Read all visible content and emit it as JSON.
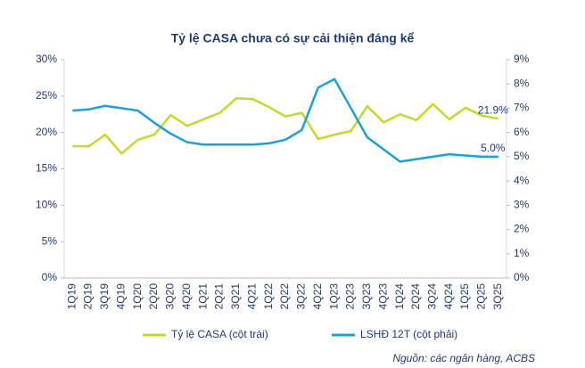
{
  "chart_data": {
    "type": "line",
    "title": "Tỷ lệ CASA chưa có sự cải thiện đáng kể",
    "categories": [
      "1Q19",
      "2Q19",
      "3Q19",
      "4Q19",
      "1Q20",
      "2Q20",
      "3Q20",
      "4Q20",
      "1Q21",
      "2Q21",
      "3Q21",
      "4Q21",
      "1Q22",
      "2Q22",
      "3Q22",
      "4Q22",
      "1Q23",
      "2Q23",
      "3Q23",
      "4Q23",
      "1Q24",
      "2Q24",
      "3Q24",
      "4Q24",
      "1Q25",
      "2Q25",
      "3Q25"
    ],
    "series": [
      {
        "name": "Tỷ lệ CASA (cột trái)",
        "color": "#c8d72b",
        "values": [
          18.1,
          18.1,
          19.7,
          17.1,
          19.0,
          19.7,
          22.4,
          20.9,
          21.8,
          22.7,
          24.7,
          24.6,
          23.5,
          22.2,
          22.7,
          19.1,
          19.7,
          20.2,
          23.6,
          21.4,
          22.5,
          21.7,
          23.9,
          21.8,
          23.4,
          22.3,
          21.9
        ],
        "value_labels": [
          null,
          null,
          null,
          null,
          null,
          null,
          null,
          null,
          null,
          null,
          null,
          null,
          null,
          null,
          null,
          null,
          null,
          null,
          null,
          null,
          null,
          null,
          null,
          null,
          null,
          null,
          "21.9%"
        ]
      },
      {
        "name": "LSHĐ 12T (cột phải)",
        "color": "#1ca0d8",
        "axis": "y2",
        "values": [
          6.9,
          6.95,
          7.1,
          7.0,
          6.9,
          6.4,
          5.95,
          5.6,
          5.5,
          5.5,
          5.5,
          5.5,
          5.55,
          5.7,
          6.1,
          7.85,
          8.2,
          7.0,
          5.8,
          5.3,
          4.8,
          4.9,
          5.0,
          5.1,
          5.05,
          5.0,
          5.0
        ],
        "value_labels": [
          null,
          null,
          null,
          null,
          null,
          null,
          null,
          null,
          null,
          null,
          null,
          null,
          null,
          null,
          null,
          null,
          null,
          null,
          null,
          null,
          null,
          null,
          null,
          null,
          null,
          null,
          "5.0%"
        ]
      }
    ],
    "ylim": [
      0,
      30
    ],
    "yticks": [
      {
        "value": 0,
        "label": "0%"
      },
      {
        "value": 5,
        "label": "5%"
      },
      {
        "value": 10,
        "label": "10%"
      },
      {
        "value": 15,
        "label": "15%"
      },
      {
        "value": 20,
        "label": "20%"
      },
      {
        "value": 25,
        "label": "25%"
      },
      {
        "value": 30,
        "label": "30%"
      }
    ],
    "y2lim": [
      0,
      9
    ],
    "y2ticks": [
      {
        "value": 0,
        "label": "0%"
      },
      {
        "value": 1,
        "label": "1%"
      },
      {
        "value": 2,
        "label": "2%"
      },
      {
        "value": 3,
        "label": "3%"
      },
      {
        "value": 4,
        "label": "4%"
      },
      {
        "value": 5,
        "label": "5%"
      },
      {
        "value": 6,
        "label": "6%"
      },
      {
        "value": 7,
        "label": "7%"
      },
      {
        "value": 8,
        "label": "8%"
      },
      {
        "value": 9,
        "label": "9%"
      }
    ],
    "grid": false,
    "legend": "bottom",
    "source": "Nguồn:  các ngân hàng, ACBS"
  }
}
